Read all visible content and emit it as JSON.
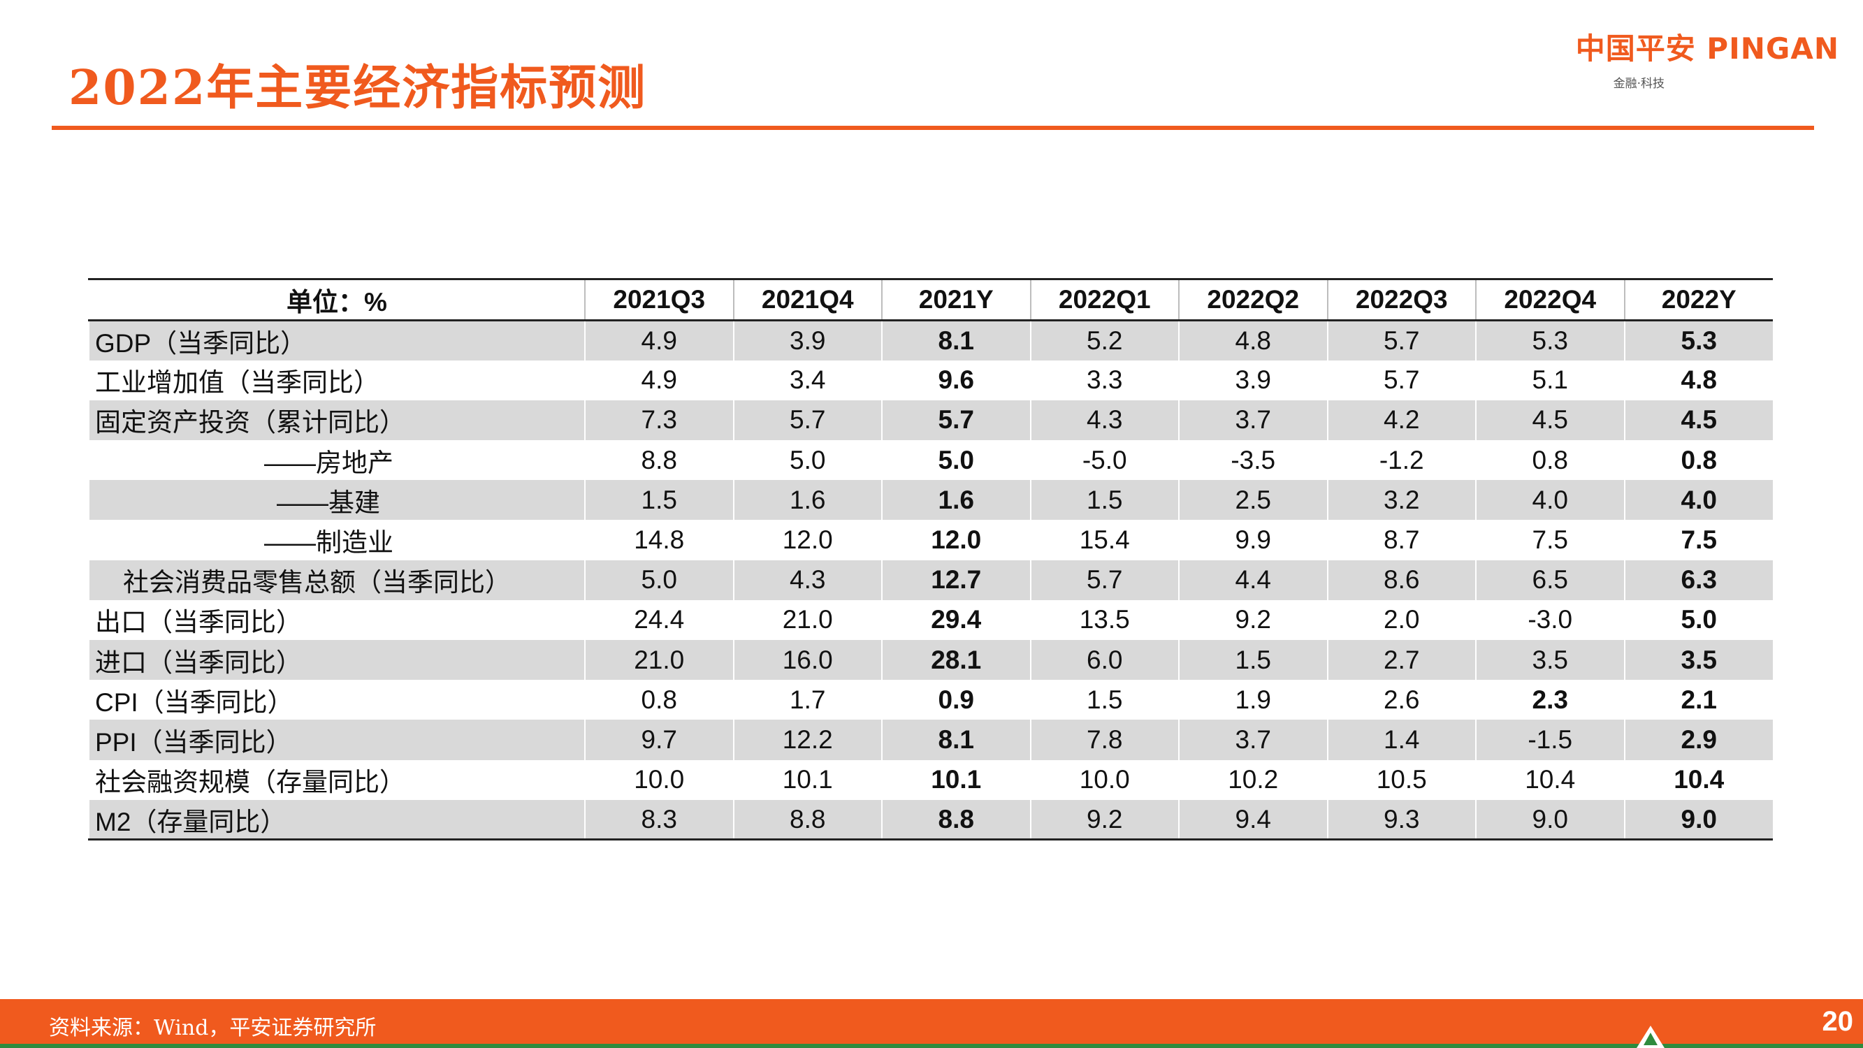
{
  "page": {
    "title": "2022年主要经济指标预测",
    "source": "资料来源：Wind，平安证券研究所",
    "page_number": "20"
  },
  "logo": {
    "main": "中国平安 PINGAN",
    "sub": "金融·科技"
  },
  "table": {
    "headers": [
      "单位：%",
      "2021Q3",
      "2021Q4",
      "2021Y",
      "2022Q1",
      "2022Q2",
      "2022Q3",
      "2022Q4",
      "2022Y"
    ],
    "rows": [
      {
        "label": "GDP（当季同比）",
        "values": [
          "4.9",
          "3.9",
          "8.1",
          "5.2",
          "4.8",
          "5.7",
          "5.3",
          "5.3"
        ]
      },
      {
        "label": "工业增加值（当季同比）",
        "values": [
          "4.9",
          "3.4",
          "9.6",
          "3.3",
          "3.9",
          "5.7",
          "5.1",
          "4.8"
        ]
      },
      {
        "label": "固定资产投资（累计同比）",
        "values": [
          "7.3",
          "5.7",
          "5.7",
          "4.3",
          "3.7",
          "4.2",
          "4.5",
          "4.5"
        ]
      },
      {
        "label": "——房地产",
        "values": [
          "8.8",
          "5.0",
          "5.0",
          "-5.0",
          "-3.5",
          "-1.2",
          "0.8",
          "0.8"
        ]
      },
      {
        "label": "——基建",
        "values": [
          "1.5",
          "1.6",
          "1.6",
          "1.5",
          "2.5",
          "3.2",
          "4.0",
          "4.0"
        ]
      },
      {
        "label": "——制造业",
        "values": [
          "14.8",
          "12.0",
          "12.0",
          "15.4",
          "9.9",
          "8.7",
          "7.5",
          "7.5"
        ]
      },
      {
        "label": "社会消费品零售总额（当季同比）",
        "values": [
          "5.0",
          "4.3",
          "12.7",
          "5.7",
          "4.4",
          "8.6",
          "6.5",
          "6.3"
        ]
      },
      {
        "label": "出口（当季同比）",
        "values": [
          "24.4",
          "21.0",
          "29.4",
          "13.5",
          "9.2",
          "2.0",
          "-3.0",
          "5.0"
        ]
      },
      {
        "label": "进口（当季同比）",
        "values": [
          "21.0",
          "16.0",
          "28.1",
          "6.0",
          "1.5",
          "2.7",
          "3.5",
          "3.5"
        ]
      },
      {
        "label": "CPI（当季同比）",
        "values": [
          "0.8",
          "1.7",
          "0.9",
          "1.5",
          "1.9",
          "2.6",
          "2.3",
          "2.1"
        ]
      },
      {
        "label": "PPI（当季同比）",
        "values": [
          "9.7",
          "12.2",
          "8.1",
          "7.8",
          "3.7",
          "1.4",
          "-1.5",
          "2.9"
        ]
      },
      {
        "label": "社会融资规模（存量同比）",
        "values": [
          "10.0",
          "10.1",
          "10.1",
          "10.0",
          "10.2",
          "10.5",
          "10.4",
          "10.4"
        ]
      },
      {
        "label": "M2（存量同比）",
        "values": [
          "8.3",
          "8.8",
          "8.8",
          "9.2",
          "9.4",
          "9.3",
          "9.0",
          "9.0"
        ]
      }
    ]
  },
  "colors": {
    "brand_orange": "#f05a1e",
    "row_stripe": "#d9d9d9",
    "footer_green": "#2e8b3e"
  }
}
